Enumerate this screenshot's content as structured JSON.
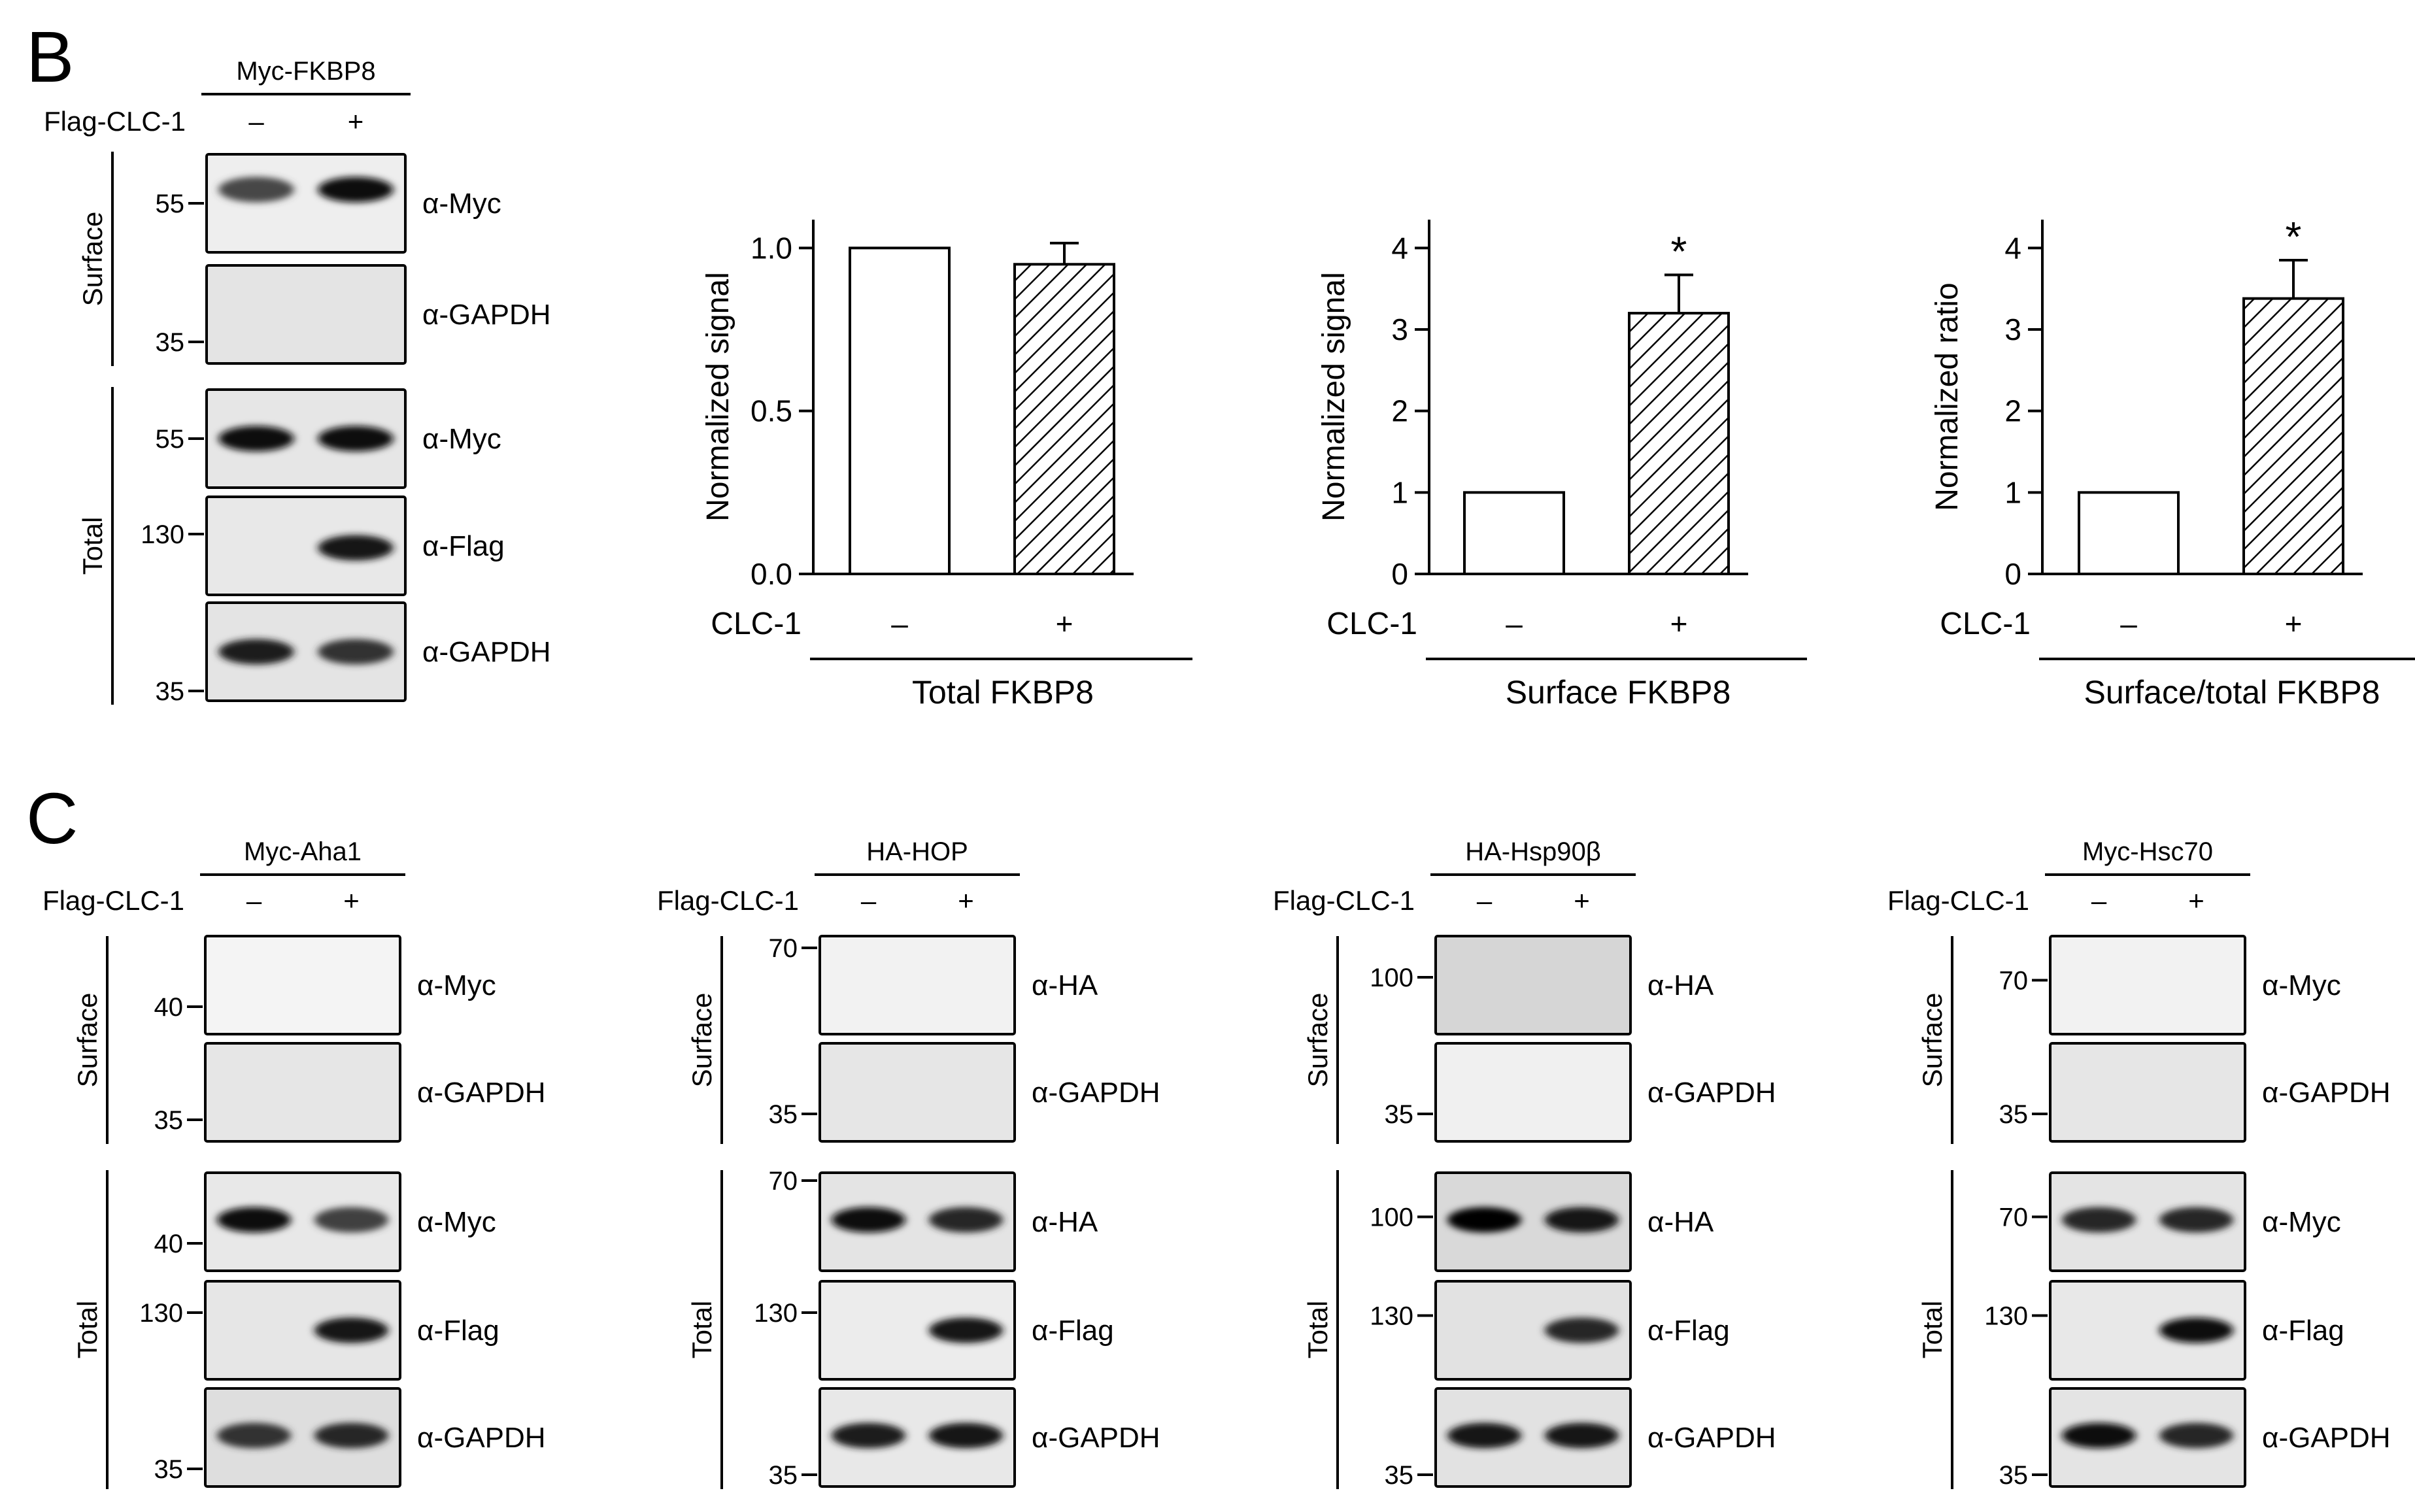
{
  "figure": {
    "panel_b": {
      "letter": "B",
      "blot": {
        "construct": "Myc-FKBP8",
        "treatment_label": "Flag-CLC-1",
        "lanes": [
          "–",
          "+"
        ],
        "groups": [
          "Surface",
          "Total"
        ],
        "panels": [
          {
            "group": 0,
            "antibody": "α-Myc",
            "marker": "55",
            "bg": "#eeeeee",
            "bands": [
              {
                "i": 0.72
              },
              {
                "i": 0.95
              }
            ]
          },
          {
            "group": 0,
            "antibody": "α-GAPDH",
            "marker": "35",
            "bg": "#e4e4e4",
            "bands": [
              {
                "i": 0
              },
              {
                "i": 0
              }
            ]
          },
          {
            "group": 1,
            "antibody": "α-Myc",
            "marker": "55",
            "bg": "#e6e6e6",
            "bands": [
              {
                "i": 0.95
              },
              {
                "i": 0.95
              }
            ]
          },
          {
            "group": 1,
            "antibody": "α-Flag",
            "marker": "130",
            "bg": "#e8e8e8",
            "bands": [
              {
                "i": 0
              },
              {
                "i": 0.9
              }
            ]
          },
          {
            "group": 1,
            "antibody": "α-GAPDH",
            "marker": "35",
            "bg": "#e4e4e4",
            "bands": [
              {
                "i": 0.88
              },
              {
                "i": 0.8
              }
            ]
          }
        ]
      }
    },
    "panel_c": {
      "letter": "C",
      "blots": [
        {
          "construct": "Myc-Aha1",
          "treatment_label": "Flag-CLC-1",
          "lanes": [
            "–",
            "+"
          ],
          "groups": [
            "Surface",
            "Total"
          ],
          "panels": [
            {
              "group": 0,
              "antibody": "α-Myc",
              "marker": "40",
              "bg": "#f4f4f4",
              "bands": [
                {
                  "i": 0
                },
                {
                  "i": 0
                }
              ]
            },
            {
              "group": 0,
              "antibody": "α-GAPDH",
              "marker": "35",
              "bg": "#e6e6e6",
              "bands": [
                {
                  "i": 0
                },
                {
                  "i": 0
                }
              ]
            },
            {
              "group": 1,
              "antibody": "α-Myc",
              "marker": "40",
              "bg": "#e8e8e8",
              "bands": [
                {
                  "i": 0.95
                },
                {
                  "i": 0.75
                }
              ]
            },
            {
              "group": 1,
              "antibody": "α-Flag",
              "marker": "130",
              "bg": "#e6e6e6",
              "bands": [
                {
                  "i": 0
                },
                {
                  "i": 0.9
                }
              ]
            },
            {
              "group": 1,
              "antibody": "α-GAPDH",
              "marker": "35",
              "bg": "#dedede",
              "bands": [
                {
                  "i": 0.8
                },
                {
                  "i": 0.85
                }
              ]
            }
          ]
        },
        {
          "construct": "HA-HOP",
          "treatment_label": "Flag-CLC-1",
          "lanes": [
            "–",
            "+"
          ],
          "groups": [
            "Surface",
            "Total"
          ],
          "panels": [
            {
              "group": 0,
              "antibody": "α-HA",
              "marker": "70",
              "bg": "#f2f2f2",
              "bands": [
                {
                  "i": 0
                },
                {
                  "i": 0
                }
              ]
            },
            {
              "group": 0,
              "antibody": "α-GAPDH",
              "marker": "35",
              "bg": "#e6e6e6",
              "bands": [
                {
                  "i": 0
                },
                {
                  "i": 0
                }
              ]
            },
            {
              "group": 1,
              "antibody": "α-HA",
              "marker": "70",
              "bg": "#e4e4e4",
              "bands": [
                {
                  "i": 0.95
                },
                {
                  "i": 0.85
                }
              ]
            },
            {
              "group": 1,
              "antibody": "α-Flag",
              "marker": "130",
              "bg": "#ececec",
              "bands": [
                {
                  "i": 0
                },
                {
                  "i": 0.9
                }
              ]
            },
            {
              "group": 1,
              "antibody": "α-GAPDH",
              "marker": "35",
              "bg": "#e8e8e8",
              "bands": [
                {
                  "i": 0.88
                },
                {
                  "i": 0.9
                }
              ]
            }
          ]
        },
        {
          "construct": "HA-Hsp90β",
          "treatment_label": "Flag-CLC-1",
          "lanes": [
            "–",
            "+"
          ],
          "groups": [
            "Surface",
            "Total"
          ],
          "panels": [
            {
              "group": 0,
              "antibody": "α-HA",
              "marker": "100",
              "bg": "#d6d6d6",
              "bands": [
                {
                  "i": 0
                },
                {
                  "i": 0
                }
              ]
            },
            {
              "group": 0,
              "antibody": "α-GAPDH",
              "marker": "35",
              "bg": "#f0f0f0",
              "bands": [
                {
                  "i": 0
                },
                {
                  "i": 0
                }
              ]
            },
            {
              "group": 1,
              "antibody": "α-HA",
              "marker": "100",
              "bg": "#d9d9d9",
              "bands": [
                {
                  "i": 1.0
                },
                {
                  "i": 0.9
                }
              ]
            },
            {
              "group": 1,
              "antibody": "α-Flag",
              "marker": "130",
              "bg": "#e2e2e2",
              "bands": [
                {
                  "i": 0
                },
                {
                  "i": 0.85
                }
              ]
            },
            {
              "group": 1,
              "antibody": "α-GAPDH",
              "marker": "35",
              "bg": "#e2e2e2",
              "bands": [
                {
                  "i": 0.9
                },
                {
                  "i": 0.9
                }
              ]
            }
          ]
        },
        {
          "construct": "Myc-Hsc70",
          "treatment_label": "Flag-CLC-1",
          "lanes": [
            "–",
            "+"
          ],
          "groups": [
            "Surface",
            "Total"
          ],
          "panels": [
            {
              "group": 0,
              "antibody": "α-Myc",
              "marker": "70",
              "bg": "#f2f2f2",
              "bands": [
                {
                  "i": 0
                },
                {
                  "i": 0
                }
              ]
            },
            {
              "group": 0,
              "antibody": "α-GAPDH",
              "marker": "35",
              "bg": "#e6e6e6",
              "bands": [
                {
                  "i": 0
                },
                {
                  "i": 0
                }
              ]
            },
            {
              "group": 1,
              "antibody": "α-Myc",
              "marker": "70",
              "bg": "#e4e4e4",
              "bands": [
                {
                  "i": 0.85
                },
                {
                  "i": 0.85
                }
              ]
            },
            {
              "group": 1,
              "antibody": "α-Flag",
              "marker": "130",
              "bg": "#e8e8e8",
              "bands": [
                {
                  "i": 0
                },
                {
                  "i": 0.95
                }
              ]
            },
            {
              "group": 1,
              "antibody": "α-GAPDH",
              "marker": "35",
              "bg": "#e4e4e4",
              "bands": [
                {
                  "i": 0.95
                },
                {
                  "i": 0.85
                }
              ]
            }
          ]
        }
      ]
    }
  },
  "chart_data": [
    {
      "type": "bar",
      "categories": [
        "–",
        "+"
      ],
      "values": [
        1.0,
        0.95
      ],
      "errors": [
        0,
        0.065
      ],
      "ylabel": "Normalized signal",
      "xlabel": "Total FKBP8",
      "condition_label": "CLC-1",
      "ylim": [
        0,
        1.0
      ],
      "yticks": [
        "0.0",
        "0.5",
        "1.0"
      ],
      "significance": [
        "",
        ""
      ],
      "bar_fills": [
        "open",
        "hatched"
      ]
    },
    {
      "type": "bar",
      "categories": [
        "–",
        "+"
      ],
      "values": [
        1.0,
        3.2
      ],
      "errors": [
        0,
        0.47
      ],
      "ylabel": "Normalized signal",
      "xlabel": "Surface FKBP8",
      "condition_label": "CLC-1",
      "ylim": [
        0,
        4
      ],
      "yticks": [
        "0",
        "1",
        "2",
        "3",
        "4"
      ],
      "significance": [
        "",
        "*"
      ],
      "bar_fills": [
        "open",
        "hatched"
      ]
    },
    {
      "type": "bar",
      "categories": [
        "–",
        "+"
      ],
      "values": [
        1.0,
        3.38
      ],
      "errors": [
        0,
        0.47
      ],
      "ylabel": "Normalized ratio",
      "xlabel": "Surface/total FKBP8",
      "condition_label": "CLC-1",
      "ylim": [
        0,
        4
      ],
      "yticks": [
        "0",
        "1",
        "2",
        "3",
        "4"
      ],
      "significance": [
        "",
        "*"
      ],
      "bar_fills": [
        "open",
        "hatched"
      ]
    }
  ]
}
